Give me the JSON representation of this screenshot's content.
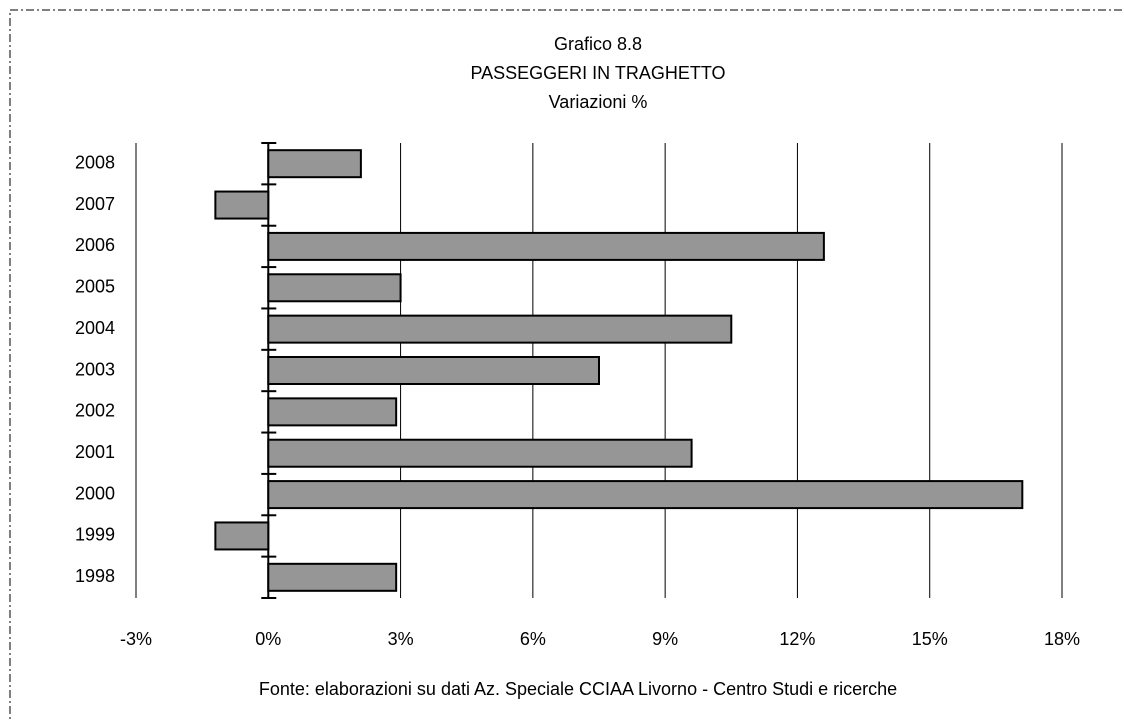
{
  "chart_data": {
    "type": "bar",
    "orientation": "horizontal",
    "title": "Grafico 8.8",
    "subtitle": "PASSEGGERI IN TRAGHETTO",
    "subtitle2": "Variazioni %",
    "source": "Fonte: elaborazioni su dati Az. Speciale CCIAA Livorno - Centro Studi e ricerche",
    "categories": [
      "1998",
      "1999",
      "2000",
      "2001",
      "2002",
      "2003",
      "2004",
      "2005",
      "2006",
      "2007",
      "2008"
    ],
    "values": [
      2.9,
      -1.2,
      17.1,
      9.6,
      2.9,
      7.5,
      10.5,
      3.0,
      12.6,
      -1.2,
      2.1
    ],
    "color": "#969696",
    "xlim": [
      -3,
      18
    ],
    "xticks": [
      {
        "value": -3,
        "label": "-3%"
      },
      {
        "value": 0,
        "label": "0%"
      },
      {
        "value": 3,
        "label": "3%"
      },
      {
        "value": 6,
        "label": "6%"
      },
      {
        "value": 9,
        "label": "9%"
      },
      {
        "value": 12,
        "label": "12%"
      },
      {
        "value": 15,
        "label": "15%"
      },
      {
        "value": 18,
        "label": "18%"
      }
    ],
    "grid": true
  }
}
